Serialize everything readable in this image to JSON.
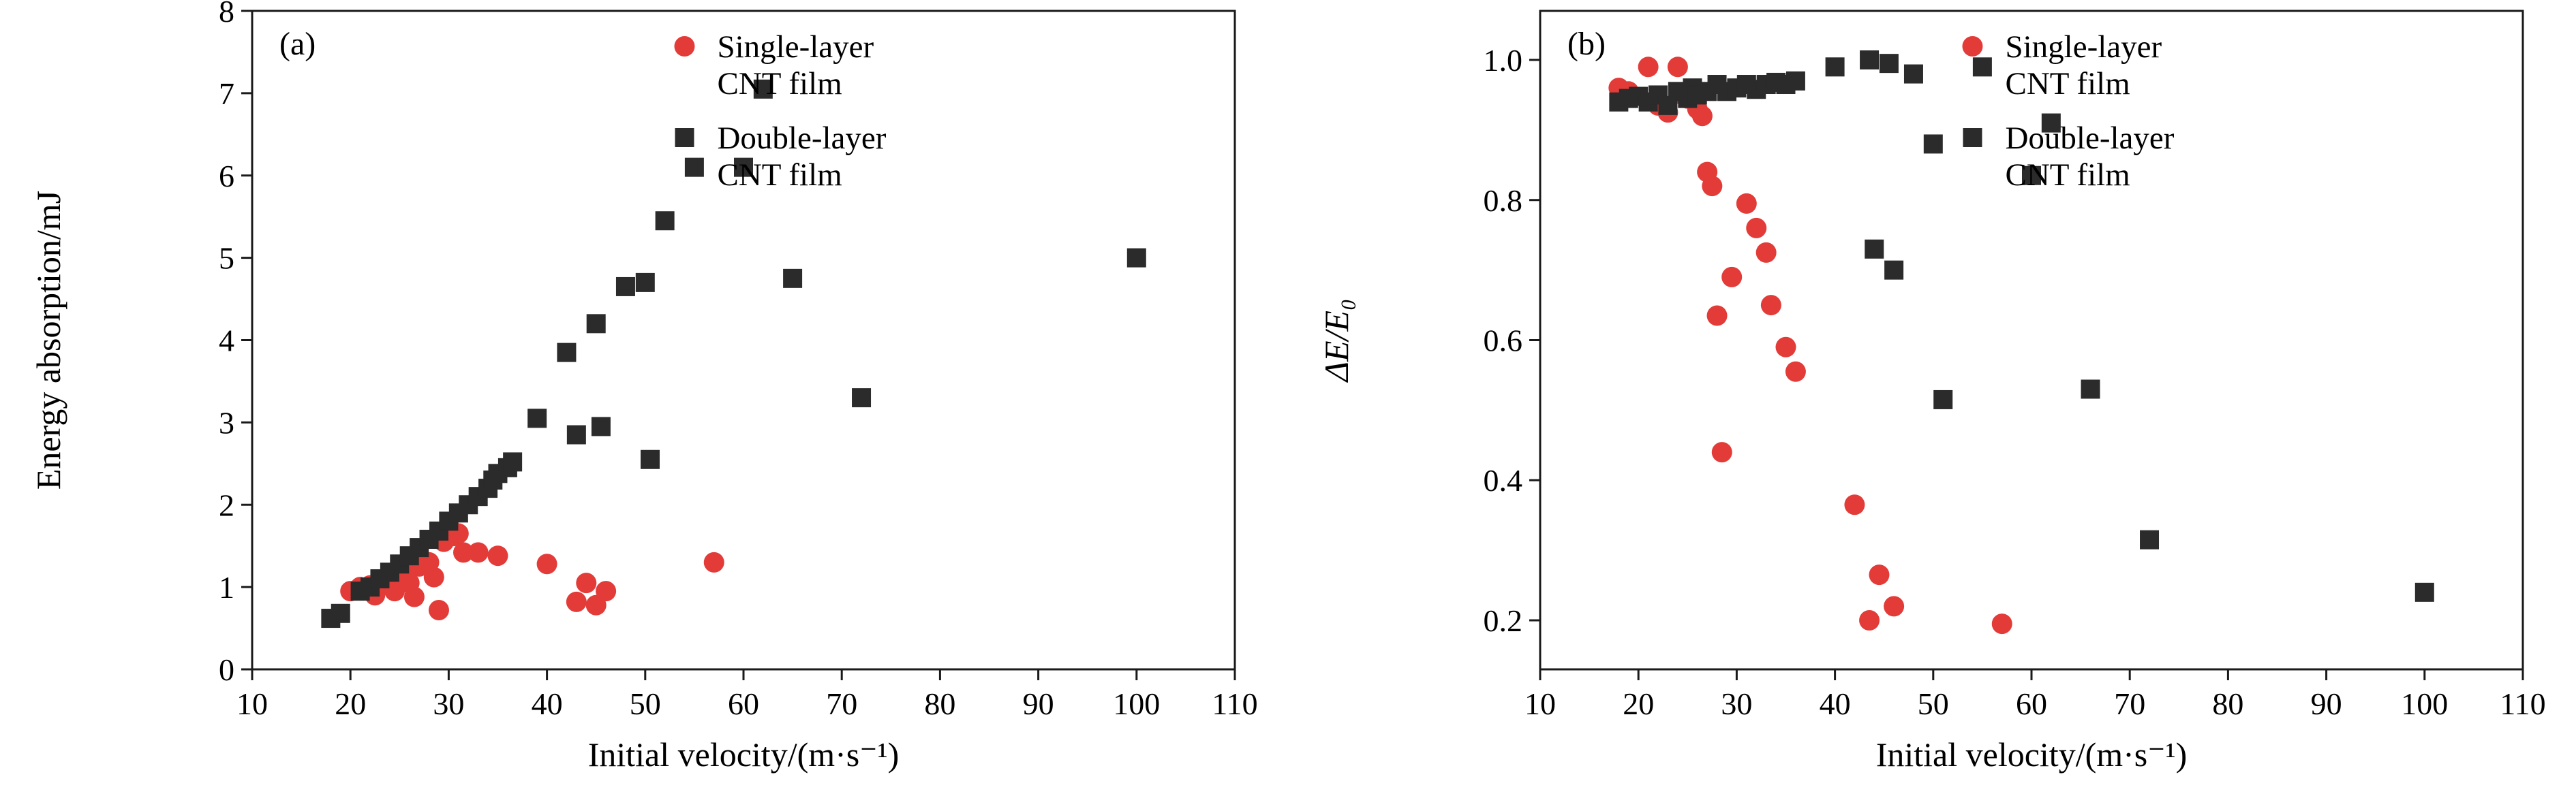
{
  "style": {
    "background": "#ffffff",
    "axis_color": "#1a1a1a",
    "text_color": "#000000",
    "single_layer_color": "#e23b38",
    "double_layer_color": "#2b2b2b"
  },
  "chart_data": [
    {
      "type": "scatter",
      "panel_label": "(a)",
      "xlabel": "Initial velocity/(m·s⁻¹)",
      "ylabel": "Energy absorption/mJ",
      "ylabel_italic": false,
      "xlim": [
        10,
        110
      ],
      "ylim": [
        0,
        8
      ],
      "xticks": [
        10,
        20,
        30,
        40,
        50,
        60,
        70,
        80,
        90,
        100,
        110
      ],
      "xtick_labels": [
        "10",
        "20",
        "30",
        "40",
        "50",
        "60",
        "70",
        "80",
        "90",
        "100",
        "110"
      ],
      "yticks": [
        0,
        1,
        2,
        3,
        4,
        5,
        6,
        7,
        8
      ],
      "ytick_labels": [
        "0",
        "1",
        "2",
        "3",
        "4",
        "5",
        "6",
        "7",
        "8"
      ],
      "grid": false,
      "legend_position": "top-right-inside",
      "series": [
        {
          "name": "Single-layer CNT film",
          "label_lines": [
            "Single-layer",
            "CNT film"
          ],
          "marker": "circle",
          "color": "#e23b38",
          "points": [
            [
              20,
              0.95
            ],
            [
              21,
              1.0
            ],
            [
              22,
              1.02
            ],
            [
              22.5,
              0.9
            ],
            [
              23,
              1.05
            ],
            [
              24,
              1.1
            ],
            [
              24.5,
              0.95
            ],
            [
              25,
              1.15
            ],
            [
              25.5,
              1.2
            ],
            [
              26,
              1.05
            ],
            [
              26.5,
              0.88
            ],
            [
              27,
              1.25
            ],
            [
              28,
              1.3
            ],
            [
              28.5,
              1.12
            ],
            [
              29,
              0.72
            ],
            [
              29.5,
              1.55
            ],
            [
              30,
              1.75
            ],
            [
              30.5,
              1.62
            ],
            [
              31,
              1.65
            ],
            [
              31.5,
              1.42
            ],
            [
              33,
              1.42
            ],
            [
              35,
              1.38
            ],
            [
              40,
              1.28
            ],
            [
              43,
              0.82
            ],
            [
              44,
              1.05
            ],
            [
              45,
              0.78
            ],
            [
              46,
              0.95
            ],
            [
              57,
              1.3
            ]
          ]
        },
        {
          "name": "Double-layer CNT film",
          "label_lines": [
            "Double-layer",
            "CNT film"
          ],
          "marker": "square",
          "color": "#2b2b2b",
          "points": [
            [
              18,
              0.62
            ],
            [
              19,
              0.68
            ],
            [
              21,
              0.95
            ],
            [
              22,
              1.0
            ],
            [
              23,
              1.1
            ],
            [
              24,
              1.18
            ],
            [
              25,
              1.28
            ],
            [
              26,
              1.38
            ],
            [
              27,
              1.48
            ],
            [
              28,
              1.58
            ],
            [
              29,
              1.68
            ],
            [
              30,
              1.8
            ],
            [
              31,
              1.9
            ],
            [
              32,
              2.0
            ],
            [
              33,
              2.1
            ],
            [
              34,
              2.2
            ],
            [
              34.5,
              2.3
            ],
            [
              35,
              2.38
            ],
            [
              36,
              2.45
            ],
            [
              36.5,
              2.52
            ],
            [
              39,
              3.05
            ],
            [
              42,
              3.85
            ],
            [
              43,
              2.85
            ],
            [
              45,
              4.2
            ],
            [
              45.5,
              2.95
            ],
            [
              48,
              4.65
            ],
            [
              50,
              4.7
            ],
            [
              50.5,
              2.55
            ],
            [
              52,
              5.45
            ],
            [
              55,
              6.1
            ],
            [
              60,
              6.1
            ],
            [
              62,
              7.05
            ],
            [
              65,
              4.75
            ],
            [
              72,
              3.3
            ],
            [
              100,
              5.0
            ]
          ]
        }
      ]
    },
    {
      "type": "scatter",
      "panel_label": "(b)",
      "xlabel": "Initial velocity/(m·s⁻¹)",
      "ylabel": "ΔE/E₀",
      "ylabel_italic": true,
      "xlim": [
        10,
        110
      ],
      "ylim": [
        0.13,
        1.07
      ],
      "xticks": [
        10,
        20,
        30,
        40,
        50,
        60,
        70,
        80,
        90,
        100,
        110
      ],
      "xtick_labels": [
        "10",
        "20",
        "30",
        "40",
        "50",
        "60",
        "70",
        "80",
        "90",
        "100",
        "110"
      ],
      "yticks": [
        0.2,
        0.4,
        0.6,
        0.8,
        1.0
      ],
      "ytick_labels": [
        "0.2",
        "0.4",
        "0.6",
        "0.8",
        "1.0"
      ],
      "grid": false,
      "legend_position": "top-right-inside",
      "series": [
        {
          "name": "Single-layer CNT film",
          "label_lines": [
            "Single-layer",
            "CNT film"
          ],
          "marker": "circle",
          "color": "#e23b38",
          "points": [
            [
              18,
              0.96
            ],
            [
              19,
              0.955
            ],
            [
              21,
              0.99
            ],
            [
              22,
              0.935
            ],
            [
              23,
              0.925
            ],
            [
              24,
              0.99
            ],
            [
              24.5,
              0.95
            ],
            [
              25,
              0.945
            ],
            [
              26,
              0.93
            ],
            [
              26.5,
              0.92
            ],
            [
              27,
              0.84
            ],
            [
              27.5,
              0.82
            ],
            [
              28,
              0.635
            ],
            [
              29.5,
              0.69
            ],
            [
              28.5,
              0.44
            ],
            [
              31,
              0.795
            ],
            [
              32,
              0.76
            ],
            [
              33,
              0.725
            ],
            [
              33.5,
              0.65
            ],
            [
              35,
              0.59
            ],
            [
              36,
              0.555
            ],
            [
              42,
              0.365
            ],
            [
              43.5,
              0.2
            ],
            [
              44.5,
              0.265
            ],
            [
              46,
              0.22
            ],
            [
              57,
              0.195
            ]
          ]
        },
        {
          "name": "Double-layer CNT film",
          "label_lines": [
            "Double-layer",
            "CNT film"
          ],
          "marker": "square",
          "color": "#2b2b2b",
          "points": [
            [
              18,
              0.94
            ],
            [
              19,
              0.945
            ],
            [
              20,
              0.948
            ],
            [
              21,
              0.94
            ],
            [
              22,
              0.95
            ],
            [
              23,
              0.935
            ],
            [
              24,
              0.955
            ],
            [
              25,
              0.945
            ],
            [
              25.5,
              0.96
            ],
            [
              26,
              0.95
            ],
            [
              27,
              0.955
            ],
            [
              28,
              0.965
            ],
            [
              29,
              0.955
            ],
            [
              30,
              0.96
            ],
            [
              31,
              0.965
            ],
            [
              32,
              0.958
            ],
            [
              33,
              0.965
            ],
            [
              34,
              0.968
            ],
            [
              35,
              0.965
            ],
            [
              36,
              0.97
            ],
            [
              40,
              0.99
            ],
            [
              43.5,
              1.0
            ],
            [
              45.5,
              0.995
            ],
            [
              44,
              0.73
            ],
            [
              46,
              0.7
            ],
            [
              48,
              0.98
            ],
            [
              50,
              0.88
            ],
            [
              51,
              0.515
            ],
            [
              55,
              0.99
            ],
            [
              60,
              0.835
            ],
            [
              62,
              0.91
            ],
            [
              66,
              0.53
            ],
            [
              72,
              0.315
            ],
            [
              100,
              0.24
            ]
          ]
        }
      ]
    }
  ]
}
